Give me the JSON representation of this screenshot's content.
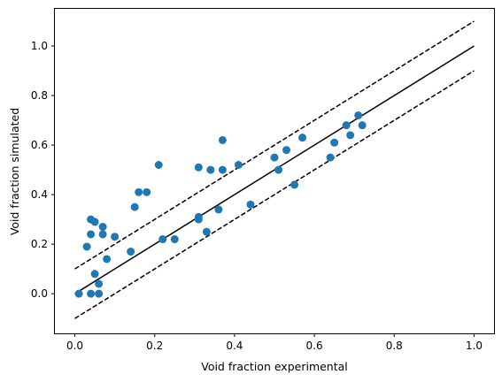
{
  "chart_data": {
    "type": "scatter",
    "title": "",
    "xlabel": "Void fraction experimental",
    "ylabel": "Void fraction simulated",
    "xlim": [
      -0.05,
      1.05
    ],
    "ylim": [
      -0.16,
      1.15
    ],
    "x_ticks": [
      "0.0",
      "0.2",
      "0.4",
      "0.6",
      "0.8",
      "1.0"
    ],
    "y_ticks": [
      "0.0",
      "0.2",
      "0.4",
      "0.6",
      "0.8",
      "1.0"
    ],
    "grid": false,
    "legend": "none",
    "colors": {
      "points": "#1f77b4",
      "lines": "#000000"
    },
    "series": [
      {
        "values": [
          [
            0.01,
            0.0
          ],
          [
            0.04,
            0.0
          ],
          [
            0.06,
            0.0
          ],
          [
            0.06,
            0.04
          ],
          [
            0.05,
            0.08
          ],
          [
            0.03,
            0.19
          ],
          [
            0.04,
            0.24
          ],
          [
            0.08,
            0.14
          ],
          [
            0.07,
            0.24
          ],
          [
            0.07,
            0.27
          ],
          [
            0.05,
            0.29
          ],
          [
            0.04,
            0.3
          ],
          [
            0.1,
            0.23
          ],
          [
            0.14,
            0.17
          ],
          [
            0.15,
            0.35
          ],
          [
            0.16,
            0.41
          ],
          [
            0.18,
            0.41
          ],
          [
            0.21,
            0.52
          ],
          [
            0.22,
            0.22
          ],
          [
            0.25,
            0.22
          ],
          [
            0.31,
            0.51
          ],
          [
            0.31,
            0.3
          ],
          [
            0.31,
            0.31
          ],
          [
            0.33,
            0.25
          ],
          [
            0.34,
            0.5
          ],
          [
            0.36,
            0.34
          ],
          [
            0.37,
            0.62
          ],
          [
            0.37,
            0.5
          ],
          [
            0.41,
            0.52
          ],
          [
            0.44,
            0.36
          ],
          [
            0.5,
            0.55
          ],
          [
            0.51,
            0.5
          ],
          [
            0.53,
            0.58
          ],
          [
            0.55,
            0.44
          ],
          [
            0.57,
            0.63
          ],
          [
            0.64,
            0.55
          ],
          [
            0.65,
            0.61
          ],
          [
            0.68,
            0.68
          ],
          [
            0.69,
            0.64
          ],
          [
            0.71,
            0.72
          ],
          [
            0.72,
            0.68
          ]
        ]
      }
    ],
    "reference_lines": [
      {
        "style": "solid",
        "points": [
          [
            0,
            0.0
          ],
          [
            1,
            1.0
          ]
        ]
      },
      {
        "style": "dashed",
        "points": [
          [
            0,
            0.1
          ],
          [
            1,
            1.1
          ]
        ]
      },
      {
        "style": "dashed",
        "points": [
          [
            0,
            -0.1
          ],
          [
            1,
            0.9
          ]
        ]
      }
    ]
  }
}
